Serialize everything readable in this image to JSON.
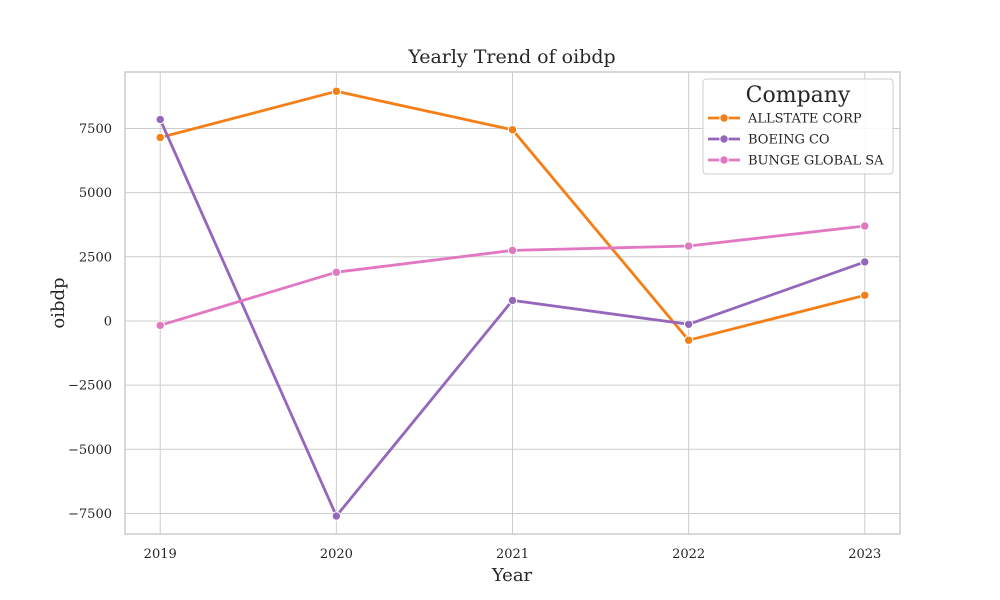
{
  "chart_data": {
    "type": "line",
    "title": "Yearly Trend of oibdp",
    "xlabel": "Year",
    "ylabel": "oibdp",
    "x": [
      2019,
      2020,
      2021,
      2022,
      2023
    ],
    "xticks": [
      "2019",
      "2020",
      "2021",
      "2022",
      "2023"
    ],
    "yticks": [
      -7500,
      -5000,
      -2500,
      0,
      2500,
      5000,
      7500
    ],
    "ytick_labels": [
      "−7500",
      "−5000",
      "−2500",
      "0",
      "2500",
      "5000",
      "7500"
    ],
    "ylim": [
      -8300,
      9700
    ],
    "xlim": [
      2018.8,
      2023.2
    ],
    "grid": true,
    "legend": {
      "title": "Company",
      "position": "top-right"
    },
    "series": [
      {
        "name": "ALLSTATE CORP",
        "color": "#f57f17",
        "values": [
          7150,
          8950,
          7450,
          -750,
          1000
        ]
      },
      {
        "name": "BOEING CO",
        "color": "#9467bd",
        "values": [
          7850,
          -7600,
          800,
          -130,
          2300
        ]
      },
      {
        "name": "BUNGE GLOBAL SA",
        "color": "#e377c2",
        "values": [
          -170,
          1900,
          2750,
          2920,
          3700
        ]
      }
    ]
  }
}
